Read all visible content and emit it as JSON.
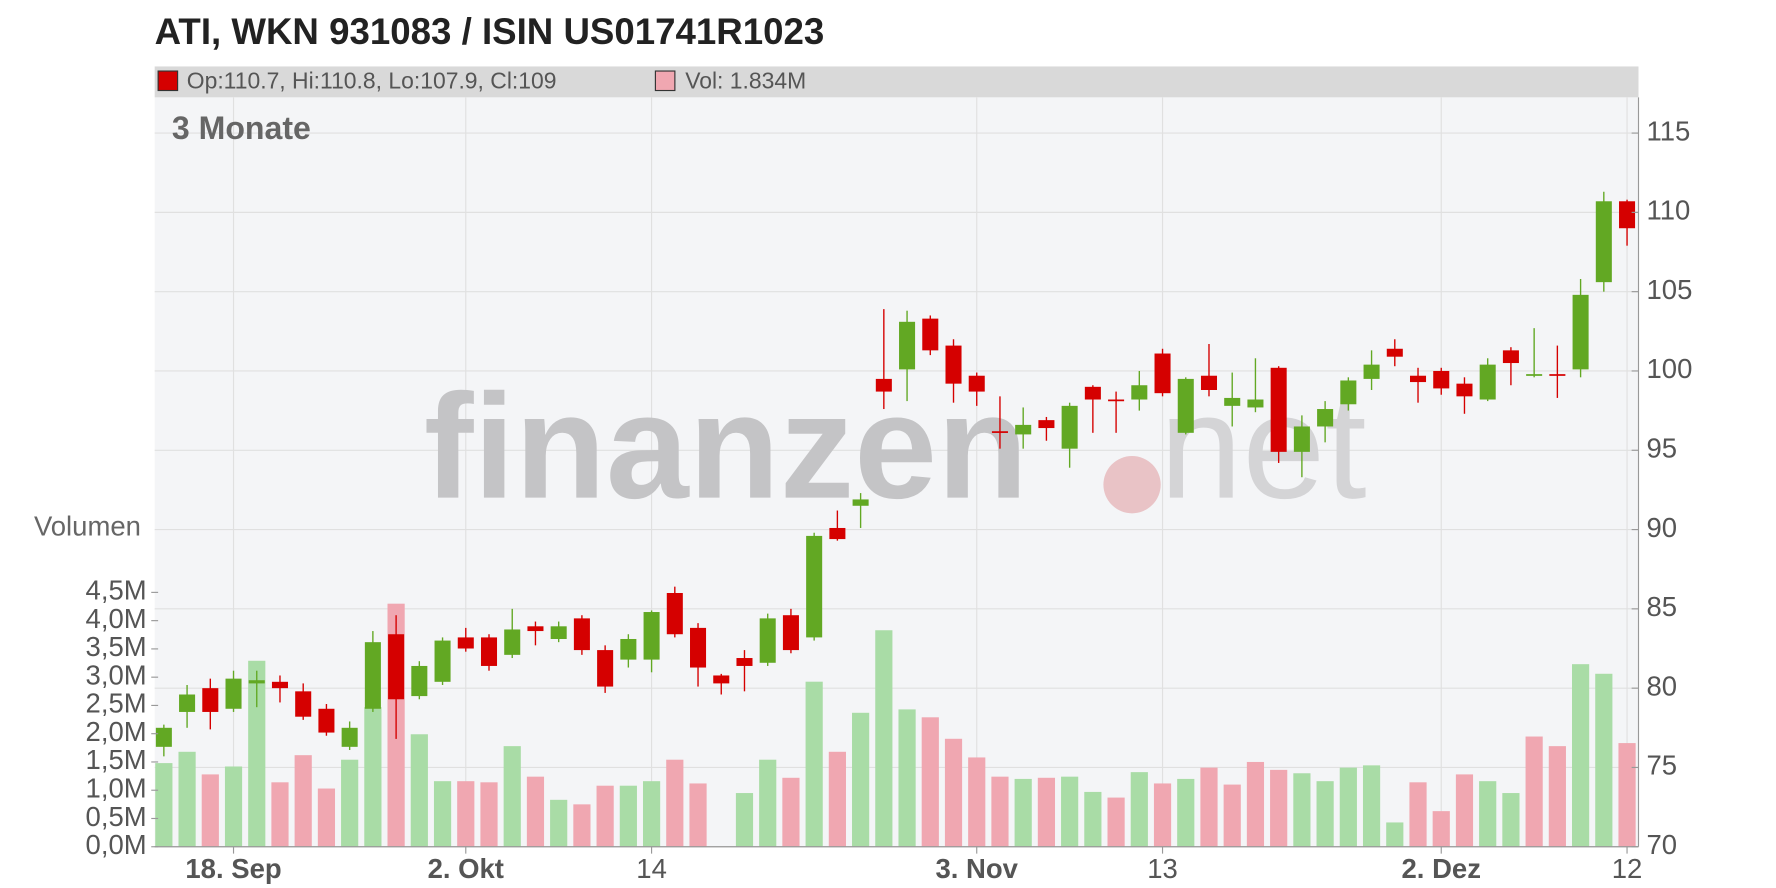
{
  "chart_data": {
    "type": "candlestick",
    "title": "ATI, WKN 931083 / ISIN US01741R1023",
    "legend_price": "Op:110.7, Hi:110.8, Lo:107.9, Cl:109",
    "legend_volume": "Vol: 1.834M",
    "period": "3 Monate",
    "volume_label": "Volumen",
    "watermark": {
      "left": "finanzen",
      "right": "net"
    },
    "categories": [
      null,
      null,
      null,
      "18. Sep",
      null,
      null,
      null,
      null,
      null,
      null,
      null,
      null,
      null,
      "2. Okt",
      null,
      null,
      null,
      null,
      null,
      null,
      null,
      "14",
      null,
      null,
      null,
      null,
      null,
      null,
      null,
      null,
      null,
      null,
      null,
      null,
      null,
      "3. Nov",
      null,
      null,
      null,
      null,
      null,
      null,
      null,
      "13",
      null,
      null,
      null,
      null,
      null,
      null,
      null,
      null,
      null,
      null,
      null,
      "2. Dez",
      null,
      null,
      null,
      null,
      null,
      null,
      null,
      "12"
    ],
    "open": [
      76.3,
      78.5,
      80.0,
      78.7,
      80.3,
      80.4,
      79.8,
      78.7,
      76.3,
      78.7,
      83.4,
      79.5,
      80.4,
      83.2,
      83.2,
      82.1,
      83.9,
      83.1,
      84.4,
      82.4,
      81.8,
      81.8,
      86.0,
      83.8,
      80.8,
      81.9,
      81.6,
      84.6,
      83.2,
      90.1,
      91.5,
      99.5,
      100.1,
      103.3,
      101.6,
      99.7,
      96.2,
      96.0,
      96.9,
      95.1,
      99.0,
      98.2,
      98.2,
      101.1,
      96.1,
      99.7,
      97.8,
      97.7,
      100.2,
      94.9,
      96.5,
      97.9,
      99.5,
      101.4,
      99.7,
      100.0,
      99.2,
      98.2,
      101.3,
      99.7,
      99.8,
      100.1,
      105.6,
      110.7
    ],
    "high": [
      77.7,
      80.2,
      80.6,
      81.1,
      81.1,
      80.8,
      80.3,
      79.0,
      77.9,
      83.6,
      84.6,
      81.7,
      83.2,
      83.8,
      83.4,
      85.0,
      84.2,
      84.2,
      84.6,
      82.7,
      83.4,
      84.9,
      86.4,
      84.1,
      80.9,
      82.4,
      84.7,
      85.0,
      89.8,
      91.2,
      92.3,
      103.9,
      103.8,
      103.5,
      102.0,
      99.9,
      98.4,
      97.7,
      97.1,
      98.0,
      99.1,
      98.7,
      100.0,
      101.4,
      99.6,
      101.7,
      99.9,
      100.8,
      100.3,
      97.2,
      98.1,
      99.6,
      101.3,
      102.0,
      100.2,
      100.2,
      99.6,
      100.8,
      101.5,
      102.7,
      101.6,
      105.8,
      111.3,
      110.8
    ],
    "low": [
      75.7,
      77.5,
      77.4,
      78.5,
      78.8,
      79.1,
      78.0,
      77.0,
      76.1,
      78.5,
      76.8,
      79.3,
      80.2,
      82.3,
      81.1,
      81.9,
      82.7,
      82.9,
      82.1,
      79.7,
      81.3,
      81.0,
      83.2,
      80.1,
      79.6,
      79.8,
      81.4,
      82.2,
      83.0,
      89.3,
      90.1,
      97.6,
      98.1,
      101.0,
      98.0,
      97.8,
      95.1,
      95.1,
      95.6,
      93.9,
      96.1,
      96.1,
      97.5,
      98.4,
      96.0,
      98.4,
      96.5,
      97.4,
      94.2,
      93.3,
      95.5,
      97.5,
      98.8,
      100.3,
      98.0,
      98.5,
      97.3,
      98.1,
      99.1,
      99.6,
      98.3,
      99.6,
      105.0,
      107.9
    ],
    "close": [
      77.5,
      79.6,
      78.5,
      80.6,
      80.5,
      80.0,
      78.2,
      77.2,
      77.5,
      82.9,
      79.3,
      81.4,
      83.0,
      82.5,
      81.4,
      83.7,
      83.6,
      83.9,
      82.4,
      80.1,
      83.1,
      84.8,
      83.4,
      81.3,
      80.3,
      81.4,
      84.4,
      82.4,
      89.6,
      89.4,
      91.9,
      98.7,
      103.1,
      101.3,
      99.2,
      98.7,
      96.1,
      96.6,
      96.4,
      97.8,
      98.2,
      98.1,
      99.1,
      98.6,
      99.5,
      98.8,
      98.3,
      98.2,
      94.9,
      96.5,
      97.6,
      99.4,
      100.4,
      100.9,
      99.3,
      98.9,
      98.4,
      100.4,
      100.5,
      99.8,
      99.7,
      104.8,
      110.7,
      109
    ],
    "volume": [
      1.48,
      1.68,
      1.28,
      1.42,
      3.29,
      1.14,
      1.62,
      1.03,
      1.54,
      2.47,
      4.3,
      1.99,
      1.16,
      1.16,
      1.14,
      1.78,
      1.24,
      0.83,
      0.75,
      1.08,
      1.08,
      1.16,
      1.54,
      1.12,
      null,
      0.95,
      1.54,
      1.22,
      2.92,
      1.68,
      2.37,
      3.83,
      2.43,
      2.29,
      1.91,
      1.58,
      1.24,
      1.2,
      1.22,
      1.24,
      0.97,
      0.87,
      1.32,
      1.12,
      1.2,
      1.4,
      1.1,
      1.5,
      1.36,
      1.3,
      1.16,
      1.4,
      1.44,
      0.43,
      1.14,
      0.63,
      1.28,
      1.16,
      0.95,
      1.95,
      1.78,
      3.23,
      3.06,
      1.834
    ],
    "volume_colors": [
      "#a9dca6",
      "#a9dca6",
      "#f0a7b1",
      "#a9dca6",
      "#a9dca6",
      "#f0a7b1",
      "#f0a7b1",
      "#f0a7b1",
      "#a9dca6",
      "#a9dca6",
      "#f0a7b1",
      "#a9dca6",
      "#a9dca6",
      "#f0a7b1",
      "#f0a7b1",
      "#a9dca6",
      "#f0a7b1",
      "#a9dca6",
      "#f0a7b1",
      "#f0a7b1",
      "#a9dca6",
      "#a9dca6",
      "#f0a7b1",
      "#f0a7b1",
      null,
      "#a9dca6",
      "#a9dca6",
      "#f0a7b1",
      "#a9dca6",
      "#f0a7b1",
      "#a9dca6",
      "#a9dca6",
      "#a9dca6",
      "#f0a7b1",
      "#f0a7b1",
      "#f0a7b1",
      "#f0a7b1",
      "#a9dca6",
      "#f0a7b1",
      "#a9dca6",
      "#a9dca6",
      "#f0a7b1",
      "#a9dca6",
      "#f0a7b1",
      "#a9dca6",
      "#f0a7b1",
      "#f0a7b1",
      "#f0a7b1",
      "#f0a7b1",
      "#a9dca6",
      "#a9dca6",
      "#a9dca6",
      "#a9dca6",
      "#a9dca6",
      "#f0a7b1",
      "#f0a7b1",
      "#f0a7b1",
      "#a9dca6",
      "#a9dca6",
      "#f0a7b1",
      "#f0a7b1",
      "#a9dca6",
      "#a9dca6",
      "#f0a7b1"
    ],
    "up_color": "#62a823",
    "down_color": "#d50000",
    "legend_volume_color": "#f0a7b1",
    "ylim": [
      70,
      117.25
    ],
    "yticks": [
      70,
      75,
      80,
      85,
      90,
      95,
      100,
      105,
      110,
      115
    ],
    "volume_ylim": [
      0,
      4.5
    ],
    "volume_yticks": [
      {
        "value": 0,
        "label": "0,0M"
      },
      {
        "value": 0.5,
        "label": "0,5M"
      },
      {
        "value": 1,
        "label": "1,0M"
      },
      {
        "value": 1.5,
        "label": "1,5M"
      },
      {
        "value": 2,
        "label": "2,0M"
      },
      {
        "value": 2.5,
        "label": "2,5M"
      },
      {
        "value": 3,
        "label": "3,0M"
      },
      {
        "value": 3.5,
        "label": "3,5M"
      },
      {
        "value": 4,
        "label": "4,0M"
      },
      {
        "value": 4.5,
        "label": "4,5M"
      }
    ],
    "grid": true
  }
}
